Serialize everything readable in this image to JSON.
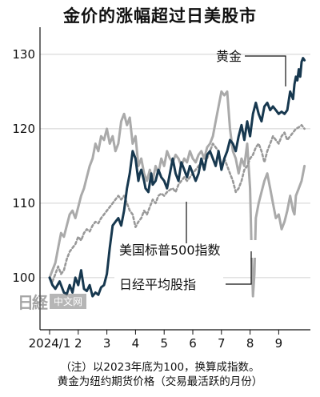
{
  "title": "金价的涨幅超过日美股市",
  "watermark": {
    "logo": "日経",
    "text": "中文网"
  },
  "notes": {
    "line1": "（注）以2023年底为100，换算成指数。",
    "line2": "黄金为纽约期货价格（交易最活跃的月份）"
  },
  "chart_data": {
    "type": "line",
    "title": "金价的涨幅超过日美股市",
    "ylim": [
      93,
      133
    ],
    "yticks": [
      100,
      110,
      120,
      130
    ],
    "xlim": [
      0,
      9.8
    ],
    "xticks": [
      {
        "x": 0,
        "label": "2024/1"
      },
      {
        "x": 1,
        "label": "2"
      },
      {
        "x": 2,
        "label": "3"
      },
      {
        "x": 3,
        "label": "4"
      },
      {
        "x": 4,
        "label": "5"
      },
      {
        "x": 5,
        "label": "6"
      },
      {
        "x": 6,
        "label": "7"
      },
      {
        "x": 7,
        "label": "8"
      },
      {
        "x": 8,
        "label": "9"
      }
    ],
    "series": [
      {
        "name": "黄金",
        "color": "#17384f",
        "style": "solid",
        "points": [
          [
            0,
            100
          ],
          [
            0.1,
            99
          ],
          [
            0.2,
            98.5
          ],
          [
            0.35,
            99.5
          ],
          [
            0.5,
            98
          ],
          [
            0.6,
            97.8
          ],
          [
            0.7,
            99
          ],
          [
            0.8,
            98
          ],
          [
            0.9,
            100
          ],
          [
            1.0,
            99
          ],
          [
            1.1,
            101
          ],
          [
            1.2,
            98.5
          ],
          [
            1.3,
            98.2
          ],
          [
            1.4,
            99
          ],
          [
            1.5,
            97.5
          ],
          [
            1.6,
            98
          ],
          [
            1.7,
            97.7
          ],
          [
            1.8,
            98.7
          ],
          [
            1.9,
            99
          ],
          [
            2.0,
            100.5
          ],
          [
            2.1,
            104
          ],
          [
            2.2,
            107
          ],
          [
            2.3,
            107.5
          ],
          [
            2.4,
            108
          ],
          [
            2.5,
            107
          ],
          [
            2.6,
            109
          ],
          [
            2.7,
            112
          ],
          [
            2.8,
            114
          ],
          [
            2.9,
            117
          ],
          [
            3.0,
            116
          ],
          [
            3.1,
            113
          ],
          [
            3.15,
            114
          ],
          [
            3.2,
            114.5
          ],
          [
            3.3,
            113
          ],
          [
            3.35,
            112
          ],
          [
            3.45,
            111.5
          ],
          [
            3.55,
            114
          ],
          [
            3.6,
            112.5
          ],
          [
            3.7,
            113
          ],
          [
            3.8,
            114.5
          ],
          [
            3.9,
            113.5
          ],
          [
            4.0,
            113
          ],
          [
            4.1,
            112
          ],
          [
            4.2,
            114
          ],
          [
            4.3,
            116
          ],
          [
            4.4,
            114
          ],
          [
            4.5,
            113
          ],
          [
            4.6,
            115.5
          ],
          [
            4.7,
            114.5
          ],
          [
            4.8,
            113.5
          ],
          [
            4.9,
            115
          ],
          [
            5.0,
            114
          ],
          [
            5.1,
            113
          ],
          [
            5.2,
            114
          ],
          [
            5.3,
            116
          ],
          [
            5.4,
            114.5
          ],
          [
            5.5,
            116.5
          ],
          [
            5.6,
            117
          ],
          [
            5.7,
            116
          ],
          [
            5.8,
            115
          ],
          [
            5.9,
            117
          ],
          [
            6.0,
            114.5
          ],
          [
            6.1,
            116
          ],
          [
            6.2,
            117
          ],
          [
            6.3,
            118.5
          ],
          [
            6.4,
            118
          ],
          [
            6.5,
            117
          ],
          [
            6.6,
            119
          ],
          [
            6.7,
            120.5
          ],
          [
            6.8,
            118.5
          ],
          [
            6.9,
            121
          ],
          [
            7.0,
            119
          ],
          [
            7.1,
            122
          ],
          [
            7.2,
            123.5
          ],
          [
            7.3,
            122
          ],
          [
            7.4,
            121
          ],
          [
            7.5,
            123
          ],
          [
            7.6,
            123.5
          ],
          [
            7.7,
            122.5
          ],
          [
            7.8,
            123
          ],
          [
            7.9,
            122.5
          ],
          [
            8.0,
            122
          ],
          [
            8.1,
            122.3
          ],
          [
            8.2,
            122
          ],
          [
            8.3,
            122.5
          ],
          [
            8.4,
            125
          ],
          [
            8.5,
            124
          ],
          [
            8.55,
            126
          ],
          [
            8.6,
            127
          ],
          [
            8.65,
            126.5
          ],
          [
            8.7,
            128
          ],
          [
            8.75,
            127
          ],
          [
            8.8,
            129
          ],
          [
            8.85,
            129.5
          ],
          [
            8.9,
            129.2
          ]
        ]
      },
      {
        "name": "美国标普500指数",
        "color": "#999999",
        "style": "dotted",
        "points": [
          [
            0,
            100
          ],
          [
            0.1,
            99.5
          ],
          [
            0.2,
            100.5
          ],
          [
            0.3,
            101.5
          ],
          [
            0.4,
            100.5
          ],
          [
            0.5,
            101
          ],
          [
            0.6,
            102.5
          ],
          [
            0.7,
            103.5
          ],
          [
            0.8,
            104
          ],
          [
            0.9,
            104.5
          ],
          [
            1.0,
            105.5
          ],
          [
            1.1,
            105
          ],
          [
            1.2,
            106
          ],
          [
            1.3,
            106.5
          ],
          [
            1.4,
            106.2
          ],
          [
            1.5,
            107
          ],
          [
            1.6,
            107.5
          ],
          [
            1.7,
            107.3
          ],
          [
            1.8,
            108
          ],
          [
            1.9,
            108.5
          ],
          [
            2.0,
            109
          ],
          [
            2.1,
            109.5
          ],
          [
            2.2,
            110
          ],
          [
            2.3,
            110.5
          ],
          [
            2.4,
            111
          ],
          [
            2.5,
            110.5
          ],
          [
            2.6,
            111
          ],
          [
            2.7,
            110
          ],
          [
            2.8,
            109
          ],
          [
            2.9,
            108.5
          ],
          [
            3.0,
            106.8
          ],
          [
            3.1,
            107.5
          ],
          [
            3.2,
            108
          ],
          [
            3.3,
            109
          ],
          [
            3.4,
            108.5
          ],
          [
            3.5,
            109.5
          ],
          [
            3.6,
            110.5
          ],
          [
            3.7,
            110
          ],
          [
            3.8,
            111
          ],
          [
            3.9,
            111.3
          ],
          [
            4.0,
            111
          ],
          [
            4.1,
            111.5
          ],
          [
            4.2,
            111.8
          ],
          [
            4.3,
            112
          ],
          [
            4.4,
            111.5
          ],
          [
            4.5,
            112.5
          ],
          [
            4.6,
            113
          ],
          [
            4.7,
            113.5
          ],
          [
            4.8,
            113
          ],
          [
            4.9,
            113.5
          ],
          [
            5.0,
            114
          ],
          [
            5.1,
            114.5
          ],
          [
            5.2,
            115
          ],
          [
            5.3,
            115.5
          ],
          [
            5.4,
            115
          ],
          [
            5.5,
            116
          ],
          [
            5.6,
            117
          ],
          [
            5.7,
            118
          ],
          [
            5.8,
            117.5
          ],
          [
            5.9,
            117
          ],
          [
            6.0,
            115
          ],
          [
            6.1,
            116
          ],
          [
            6.2,
            115
          ],
          [
            6.3,
            114
          ],
          [
            6.4,
            113
          ],
          [
            6.5,
            111.5
          ],
          [
            6.6,
            112
          ],
          [
            6.7,
            113
          ],
          [
            6.8,
            114.5
          ],
          [
            6.9,
            115
          ],
          [
            7.0,
            116
          ],
          [
            7.1,
            116.5
          ],
          [
            7.2,
            117.5
          ],
          [
            7.3,
            118
          ],
          [
            7.4,
            117
          ],
          [
            7.5,
            115.5
          ],
          [
            7.6,
            117
          ],
          [
            7.7,
            118
          ],
          [
            7.8,
            119
          ],
          [
            7.9,
            118.5
          ],
          [
            8.0,
            118
          ],
          [
            8.1,
            119
          ],
          [
            8.2,
            119.5
          ],
          [
            8.3,
            118.5
          ],
          [
            8.4,
            119
          ],
          [
            8.5,
            119.5
          ],
          [
            8.6,
            120
          ],
          [
            8.7,
            120.2
          ],
          [
            8.8,
            120.5
          ],
          [
            8.9,
            120
          ]
        ]
      },
      {
        "name": "日经平均股指",
        "color": "#aaaaaa",
        "style": "solid",
        "points": [
          [
            0,
            100
          ],
          [
            0.1,
            101
          ],
          [
            0.2,
            102
          ],
          [
            0.3,
            104
          ],
          [
            0.4,
            106
          ],
          [
            0.5,
            105.5
          ],
          [
            0.6,
            107
          ],
          [
            0.7,
            108.5
          ],
          [
            0.8,
            109
          ],
          [
            0.9,
            108
          ],
          [
            1.0,
            109.5
          ],
          [
            1.1,
            111
          ],
          [
            1.2,
            112
          ],
          [
            1.3,
            113.5
          ],
          [
            1.4,
            115
          ],
          [
            1.5,
            116
          ],
          [
            1.6,
            118
          ],
          [
            1.7,
            117
          ],
          [
            1.8,
            119
          ],
          [
            1.9,
            118.5
          ],
          [
            2.0,
            120
          ],
          [
            2.1,
            118
          ],
          [
            2.2,
            119
          ],
          [
            2.3,
            117
          ],
          [
            2.4,
            118
          ],
          [
            2.5,
            121
          ],
          [
            2.6,
            122
          ],
          [
            2.7,
            120.5
          ],
          [
            2.8,
            121.5
          ],
          [
            2.9,
            118
          ],
          [
            3.0,
            119
          ],
          [
            3.1,
            115
          ],
          [
            3.2,
            116
          ],
          [
            3.3,
            114
          ],
          [
            3.4,
            113
          ],
          [
            3.5,
            114.5
          ],
          [
            3.6,
            113
          ],
          [
            3.7,
            115
          ],
          [
            3.8,
            114
          ],
          [
            3.9,
            116
          ],
          [
            4.0,
            115
          ],
          [
            4.1,
            117
          ],
          [
            4.2,
            116
          ],
          [
            4.3,
            115.5
          ],
          [
            4.4,
            116.5
          ],
          [
            4.5,
            116
          ],
          [
            4.6,
            115
          ],
          [
            4.7,
            116
          ],
          [
            4.8,
            115.5
          ],
          [
            4.9,
            117
          ],
          [
            5.0,
            116
          ],
          [
            5.1,
            115.5
          ],
          [
            5.2,
            116.5
          ],
          [
            5.3,
            117
          ],
          [
            5.4,
            116
          ],
          [
            5.5,
            117.5
          ],
          [
            5.6,
            118
          ],
          [
            5.7,
            119
          ],
          [
            5.8,
            121
          ],
          [
            5.9,
            123
          ],
          [
            6.0,
            125
          ],
          [
            6.1,
            124.5
          ],
          [
            6.2,
            125
          ],
          [
            6.3,
            120
          ],
          [
            6.4,
            117
          ],
          [
            6.5,
            116
          ],
          [
            6.6,
            114
          ],
          [
            6.7,
            116
          ],
          [
            6.8,
            115
          ],
          [
            6.9,
            118
          ],
          [
            7.0,
            112
          ],
          [
            7.05,
            104
          ],
          [
            7.1,
            97.5
          ],
          [
            7.15,
            100.5
          ],
          [
            7.2,
            108
          ],
          [
            7.3,
            110
          ],
          [
            7.4,
            111.5
          ],
          [
            7.5,
            113
          ],
          [
            7.6,
            114
          ],
          [
            7.7,
            112
          ],
          [
            7.8,
            110
          ],
          [
            7.9,
            108
          ],
          [
            8.0,
            108.5
          ],
          [
            8.1,
            106.5
          ],
          [
            8.2,
            107.5
          ],
          [
            8.3,
            109
          ],
          [
            8.4,
            111
          ],
          [
            8.5,
            109
          ],
          [
            8.55,
            108.5
          ],
          [
            8.6,
            111
          ],
          [
            8.7,
            112
          ],
          [
            8.8,
            113
          ],
          [
            8.9,
            115
          ]
        ]
      }
    ],
    "labels": {
      "gold": "黄金",
      "sp500": "美国标普500指数",
      "nikkei": "日经平均股指"
    }
  }
}
